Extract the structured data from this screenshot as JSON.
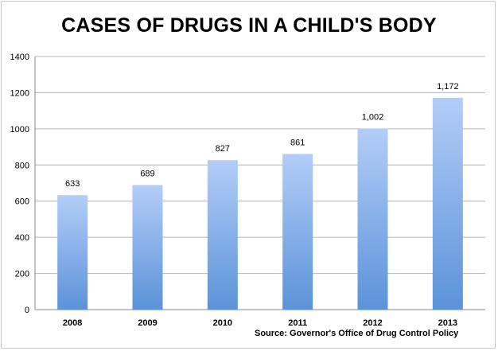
{
  "chart_data": {
    "type": "bar",
    "title": "CASES OF DRUGS IN A CHILD'S BODY",
    "categories": [
      "2008",
      "2009",
      "2010",
      "2011",
      "2012",
      "2013"
    ],
    "values": [
      633,
      689,
      827,
      861,
      1002,
      1172
    ],
    "data_labels": [
      "633",
      "689",
      "827",
      "861",
      "1,002",
      "1,172"
    ],
    "ylim": [
      0,
      1400
    ],
    "yticks": [
      0,
      200,
      400,
      600,
      800,
      1000,
      1200,
      1400
    ],
    "grid": true,
    "legend": "none",
    "bar_color_top": "#b3cdf8",
    "bar_color_bottom": "#5b93d9",
    "source": "Source: Governor's Office of Drug Control Policy"
  }
}
